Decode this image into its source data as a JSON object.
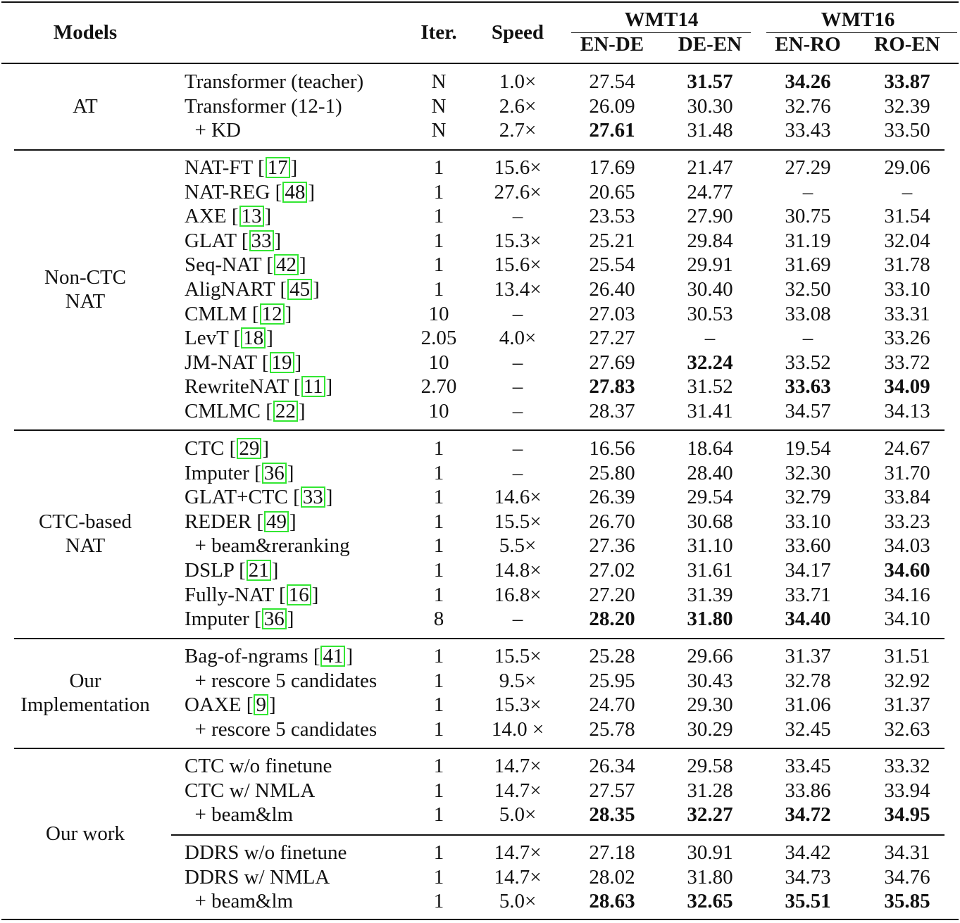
{
  "header": {
    "models": "Models",
    "iter": "Iter.",
    "speed": "Speed",
    "wmt14": "WMT14",
    "wmt16": "WMT16",
    "langs": [
      "EN-DE",
      "DE-EN",
      "EN-RO",
      "RO-EN"
    ]
  },
  "groups": [
    {
      "label": "AT",
      "rows": [
        {
          "model": "Transformer (teacher)",
          "iter": "N",
          "speed": "1.0×",
          "scores": [
            "27.54",
            "31.57",
            "34.26",
            "33.87"
          ],
          "bold": [
            false,
            true,
            true,
            true
          ]
        },
        {
          "model": "Transformer (12-1)",
          "iter": "N",
          "speed": "2.6×",
          "scores": [
            "26.09",
            "30.30",
            "32.76",
            "32.39"
          ],
          "bold": [
            false,
            false,
            false,
            false
          ]
        },
        {
          "model": "  + KD",
          "iter": "N",
          "speed": "2.7×",
          "scores": [
            "27.61",
            "31.48",
            "33.43",
            "33.50"
          ],
          "bold": [
            true,
            false,
            false,
            false
          ]
        }
      ]
    },
    {
      "label": "Non-CTC\nNAT",
      "rows": [
        {
          "model": "NAT-FT",
          "cite": "17",
          "iter": "1",
          "speed": "15.6×",
          "scores": [
            "17.69",
            "21.47",
            "27.29",
            "29.06"
          ],
          "bold": [
            false,
            false,
            false,
            false
          ]
        },
        {
          "model": "NAT-REG",
          "cite": "48",
          "iter": "1",
          "speed": "27.6×",
          "scores": [
            "20.65",
            "24.77",
            "–",
            "–"
          ],
          "bold": [
            false,
            false,
            false,
            false
          ]
        },
        {
          "model": "AXE",
          "cite": "13",
          "iter": "1",
          "speed": "–",
          "scores": [
            "23.53",
            "27.90",
            "30.75",
            "31.54"
          ],
          "bold": [
            false,
            false,
            false,
            false
          ]
        },
        {
          "model": "GLAT",
          "cite": "33",
          "iter": "1",
          "speed": "15.3×",
          "scores": [
            "25.21",
            "29.84",
            "31.19",
            "32.04"
          ],
          "bold": [
            false,
            false,
            false,
            false
          ]
        },
        {
          "model": "Seq-NAT",
          "cite": "42",
          "iter": "1",
          "speed": "15.6×",
          "scores": [
            "25.54",
            "29.91",
            "31.69",
            "31.78"
          ],
          "bold": [
            false,
            false,
            false,
            false
          ]
        },
        {
          "model": "AligNART",
          "cite": "45",
          "iter": "1",
          "speed": "13.4×",
          "scores": [
            "26.40",
            "30.40",
            "32.50",
            "33.10"
          ],
          "bold": [
            false,
            false,
            false,
            false
          ]
        },
        {
          "model": "CMLM",
          "cite": "12",
          "iter": "10",
          "speed": "–",
          "scores": [
            "27.03",
            "30.53",
            "33.08",
            "33.31"
          ],
          "bold": [
            false,
            false,
            false,
            false
          ]
        },
        {
          "model": "LevT",
          "cite": "18",
          "iter": "2.05",
          "speed": "4.0×",
          "scores": [
            "27.27",
            "–",
            "–",
            "33.26"
          ],
          "bold": [
            false,
            false,
            false,
            false
          ]
        },
        {
          "model": "JM-NAT",
          "cite": "19",
          "iter": "10",
          "speed": "–",
          "scores": [
            "27.69",
            "32.24",
            "33.52",
            "33.72"
          ],
          "bold": [
            false,
            true,
            false,
            false
          ]
        },
        {
          "model": "RewriteNAT",
          "cite": "11",
          "iter": "2.70",
          "speed": "–",
          "scores": [
            "27.83",
            "31.52",
            "33.63",
            "34.09"
          ],
          "bold": [
            true,
            false,
            true,
            true
          ]
        },
        {
          "model": "CMLMC",
          "cite": "22",
          "iter": "10",
          "speed": "–",
          "scores": [
            "28.37",
            "31.41",
            "34.57",
            "34.13"
          ],
          "bold": [
            false,
            false,
            false,
            false
          ]
        }
      ]
    },
    {
      "label": "CTC-based\nNAT",
      "rows": [
        {
          "model": "CTC",
          "cite": "29",
          "iter": "1",
          "speed": "–",
          "scores": [
            "16.56",
            "18.64",
            "19.54",
            "24.67"
          ],
          "bold": [
            false,
            false,
            false,
            false
          ]
        },
        {
          "model": "Imputer",
          "cite": "36",
          "iter": "1",
          "speed": "–",
          "scores": [
            "25.80",
            "28.40",
            "32.30",
            "31.70"
          ],
          "bold": [
            false,
            false,
            false,
            false
          ]
        },
        {
          "model": "GLAT+CTC",
          "cite": "33",
          "iter": "1",
          "speed": "14.6×",
          "scores": [
            "26.39",
            "29.54",
            "32.79",
            "33.84"
          ],
          "bold": [
            false,
            false,
            false,
            false
          ]
        },
        {
          "model": "REDER",
          "cite": "49",
          "iter": "1",
          "speed": "15.5×",
          "scores": [
            "26.70",
            "30.68",
            "33.10",
            "33.23"
          ],
          "bold": [
            false,
            false,
            false,
            false
          ]
        },
        {
          "model": "  + beam&reranking",
          "iter": "1",
          "speed": "5.5×",
          "scores": [
            "27.36",
            "31.10",
            "33.60",
            "34.03"
          ],
          "bold": [
            false,
            false,
            false,
            false
          ]
        },
        {
          "model": "DSLP",
          "cite": "21",
          "iter": "1",
          "speed": "14.8×",
          "scores": [
            "27.02",
            "31.61",
            "34.17",
            "34.60"
          ],
          "bold": [
            false,
            false,
            false,
            true
          ]
        },
        {
          "model": "Fully-NAT",
          "cite": "16",
          "iter": "1",
          "speed": "16.8×",
          "scores": [
            "27.20",
            "31.39",
            "33.71",
            "34.16"
          ],
          "bold": [
            false,
            false,
            false,
            false
          ]
        },
        {
          "model": "Imputer",
          "cite": "36",
          "iter": "8",
          "speed": "–",
          "scores": [
            "28.20",
            "31.80",
            "34.40",
            "34.10"
          ],
          "bold": [
            true,
            true,
            true,
            false
          ]
        }
      ]
    },
    {
      "label": "Our\nImplementation",
      "rows": [
        {
          "model": "Bag-of-ngrams",
          "cite": "41",
          "iter": "1",
          "speed": "15.5×",
          "scores": [
            "25.28",
            "29.66",
            "31.37",
            "31.51"
          ],
          "bold": [
            false,
            false,
            false,
            false
          ]
        },
        {
          "model": "  + rescore 5 candidates",
          "iter": "1",
          "speed": "9.5×",
          "scores": [
            "25.95",
            "30.43",
            "32.78",
            "32.92"
          ],
          "bold": [
            false,
            false,
            false,
            false
          ]
        },
        {
          "model": "OAXE",
          "cite": "9",
          "iter": "1",
          "speed": "15.3×",
          "scores": [
            "24.70",
            "29.30",
            "31.06",
            "31.37"
          ],
          "bold": [
            false,
            false,
            false,
            false
          ]
        },
        {
          "model": "  + rescore 5 candidates",
          "iter": "1",
          "speed": "14.0 ×",
          "scores": [
            "25.78",
            "30.29",
            "32.45",
            "32.63"
          ],
          "bold": [
            false,
            false,
            false,
            false
          ]
        }
      ]
    },
    {
      "label": "Our work",
      "rows": [
        {
          "model": "CTC w/o finetune",
          "iter": "1",
          "speed": "14.7×",
          "scores": [
            "26.34",
            "29.58",
            "33.45",
            "33.32"
          ],
          "bold": [
            false,
            false,
            false,
            false
          ]
        },
        {
          "model": "CTC w/ NMLA",
          "iter": "1",
          "speed": "14.7×",
          "scores": [
            "27.57",
            "31.28",
            "33.86",
            "33.94"
          ],
          "bold": [
            false,
            false,
            false,
            false
          ]
        },
        {
          "model": "  + beam&lm",
          "iter": "1",
          "speed": "5.0×",
          "scores": [
            "28.35",
            "32.27",
            "34.72",
            "34.95"
          ],
          "bold": [
            true,
            true,
            true,
            true
          ]
        },
        {
          "model": "DDRS w/o finetune",
          "iter": "1",
          "speed": "14.7×",
          "scores": [
            "27.18",
            "30.91",
            "34.42",
            "34.31"
          ],
          "bold": [
            false,
            false,
            false,
            false
          ]
        },
        {
          "model": "DDRS w/ NMLA",
          "iter": "1",
          "speed": "14.7×",
          "scores": [
            "28.02",
            "31.80",
            "34.73",
            "34.76"
          ],
          "bold": [
            false,
            false,
            false,
            false
          ]
        },
        {
          "model": "  + beam&lm",
          "iter": "1",
          "speed": "5.0×",
          "scores": [
            "28.63",
            "32.65",
            "35.51",
            "35.85"
          ],
          "bold": [
            true,
            true,
            true,
            true
          ]
        }
      ]
    }
  ]
}
